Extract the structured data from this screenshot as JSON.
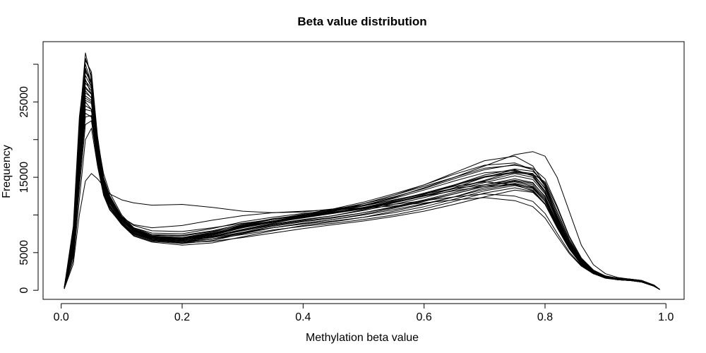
{
  "chart_data": {
    "type": "line",
    "title": "Beta value distribution",
    "xlabel": "Methylation beta value",
    "ylabel": "Frequency",
    "xlim": [
      -0.03,
      1.03
    ],
    "ylim": [
      -1200,
      33000
    ],
    "x_ticks": [
      0.0,
      0.2,
      0.4,
      0.6,
      0.8,
      1.0
    ],
    "x_tick_labels": [
      "0.0",
      "0.2",
      "0.4",
      "0.6",
      "0.8",
      "1.0"
    ],
    "y_ticks": [
      0,
      5000,
      15000,
      25000
    ],
    "y_minor_ticks": [
      10000,
      20000,
      30000
    ],
    "y_tick_labels": [
      "0",
      "5000",
      "15000",
      "25000"
    ],
    "grid": false,
    "legend": "none",
    "line_color": "#000000",
    "x": [
      0.005,
      0.02,
      0.03,
      0.04,
      0.05,
      0.06,
      0.07,
      0.08,
      0.1,
      0.12,
      0.15,
      0.2,
      0.25,
      0.3,
      0.35,
      0.4,
      0.45,
      0.5,
      0.55,
      0.6,
      0.65,
      0.7,
      0.75,
      0.78,
      0.8,
      0.82,
      0.84,
      0.86,
      0.88,
      0.9,
      0.92,
      0.94,
      0.96,
      0.98,
      0.99
    ],
    "series": [
      {
        "values": [
          400,
          8000,
          22000,
          31500,
          28000,
          20000,
          15500,
          13000,
          10000,
          8300,
          7400,
          7300,
          7900,
          8800,
          9500,
          10000,
          10500,
          11200,
          12000,
          12800,
          13500,
          14000,
          14600,
          14200,
          12500,
          9000,
          6000,
          3800,
          2500,
          1900,
          1600,
          1400,
          1200,
          600,
          100
        ]
      },
      {
        "values": [
          300,
          7000,
          20000,
          29500,
          27000,
          19000,
          14500,
          12200,
          9600,
          8000,
          7000,
          6800,
          7400,
          8500,
          9200,
          9800,
          10300,
          10900,
          11700,
          12600,
          13500,
          14500,
          15500,
          15000,
          13000,
          9500,
          6200,
          3900,
          2600,
          1900,
          1600,
          1500,
          1300,
          700,
          100
        ]
      },
      {
        "values": [
          350,
          6500,
          19000,
          28000,
          26000,
          18500,
          14000,
          11800,
          9300,
          7700,
          6800,
          6600,
          7300,
          8300,
          9100,
          9700,
          10200,
          10800,
          11600,
          12500,
          13600,
          15000,
          16000,
          15200,
          13000,
          9200,
          6000,
          3700,
          2400,
          1800,
          1500,
          1400,
          1200,
          600,
          100
        ]
      },
      {
        "values": [
          250,
          6000,
          17500,
          26500,
          25500,
          18000,
          13500,
          11500,
          9100,
          7600,
          6700,
          6500,
          7000,
          8000,
          8800,
          9400,
          9900,
          10600,
          11400,
          12300,
          13300,
          14300,
          15200,
          14700,
          12800,
          9300,
          6100,
          3800,
          2500,
          1800,
          1500,
          1400,
          1200,
          600,
          100
        ]
      },
      {
        "values": [
          300,
          5500,
          16000,
          25000,
          24000,
          17500,
          13200,
          11200,
          8900,
          7400,
          6600,
          6300,
          6800,
          7700,
          8500,
          9100,
          9600,
          10300,
          11100,
          12000,
          13000,
          14000,
          14800,
          14300,
          12400,
          9000,
          5900,
          3700,
          2400,
          1800,
          1500,
          1400,
          1200,
          600,
          100
        ]
      },
      {
        "values": [
          200,
          5000,
          15000,
          23500,
          23000,
          17000,
          13000,
          11000,
          8800,
          7300,
          6500,
          6200,
          6600,
          7500,
          8300,
          8900,
          9400,
          10100,
          10900,
          11800,
          12800,
          13800,
          14500,
          14000,
          12200,
          8900,
          5800,
          3600,
          2300,
          1700,
          1400,
          1300,
          1100,
          550,
          100
        ]
      },
      {
        "values": [
          300,
          4500,
          13500,
          22000,
          22500,
          16800,
          12800,
          10800,
          8700,
          7200,
          6400,
          6000,
          6300,
          7100,
          7900,
          8600,
          9100,
          9700,
          10500,
          11400,
          12400,
          13600,
          14200,
          13600,
          11800,
          8600,
          5600,
          3500,
          2300,
          1700,
          1400,
          1300,
          1100,
          550,
          100
        ]
      },
      {
        "values": [
          250,
          4000,
          12000,
          20000,
          21500,
          16500,
          12600,
          10700,
          8800,
          7500,
          6700,
          6300,
          6500,
          7000,
          7600,
          8200,
          8700,
          9200,
          9800,
          10500,
          11400,
          12400,
          13300,
          13000,
          11500,
          8500,
          5600,
          3500,
          2300,
          1700,
          1500,
          1400,
          1200,
          600,
          100
        ]
      },
      {
        "values": [
          200,
          3500,
          10000,
          14500,
          15500,
          14800,
          13800,
          12800,
          12000,
          11600,
          11300,
          11400,
          11000,
          10500,
          10300,
          10400,
          10800,
          11300,
          12000,
          12800,
          13800,
          14400,
          14000,
          13200,
          11500,
          8500,
          5700,
          3600,
          2400,
          1800,
          1500,
          1400,
          1200,
          600,
          100
        ]
      },
      {
        "values": [
          300,
          7500,
          21000,
          30500,
          29000,
          20500,
          15000,
          12600,
          9800,
          8200,
          7200,
          7000,
          7700,
          8700,
          9400,
          10000,
          10700,
          11500,
          12400,
          13500,
          14800,
          16000,
          16700,
          16000,
          13800,
          9800,
          6400,
          4000,
          2600,
          1900,
          1600,
          1500,
          1300,
          700,
          100
        ]
      },
      {
        "values": [
          350,
          8500,
          23000,
          30000,
          27500,
          19500,
          14800,
          12400,
          9700,
          8200,
          7300,
          7200,
          7800,
          8600,
          9200,
          9900,
          10600,
          11500,
          12600,
          14000,
          15600,
          17200,
          17800,
          16500,
          14000,
          9700,
          6200,
          3800,
          2500,
          1800,
          1500,
          1400,
          1200,
          600,
          100
        ]
      },
      {
        "values": [
          300,
          6800,
          19500,
          27500,
          26500,
          19000,
          14200,
          12000,
          9400,
          7900,
          7000,
          6900,
          7500,
          8500,
          9200,
          9900,
          10500,
          11300,
          12300,
          13600,
          15000,
          16500,
          18000,
          18400,
          17800,
          15000,
          10500,
          6000,
          3400,
          2200,
          1700,
          1500,
          1200,
          600,
          100
        ]
      },
      {
        "values": [
          300,
          6200,
          18000,
          27000,
          26000,
          18800,
          14000,
          11900,
          9400,
          8000,
          7200,
          7000,
          7600,
          8500,
          9200,
          9800,
          10300,
          10900,
          11700,
          12500,
          13500,
          14600,
          15800,
          15500,
          13500,
          9600,
          6200,
          3900,
          2500,
          1800,
          1500,
          1400,
          1200,
          600,
          100
        ]
      },
      {
        "values": [
          250,
          5800,
          17000,
          25500,
          25000,
          18200,
          13700,
          11600,
          9200,
          7800,
          7000,
          6700,
          7100,
          7900,
          8600,
          9200,
          9700,
          10300,
          11000,
          11900,
          12800,
          13800,
          14400,
          13800,
          12000,
          8800,
          5800,
          3600,
          2400,
          1700,
          1400,
          1300,
          1100,
          550,
          100
        ]
      },
      {
        "values": [
          300,
          5200,
          15500,
          24500,
          24000,
          17600,
          13300,
          11300,
          9000,
          7600,
          6900,
          6700,
          7000,
          7700,
          8300,
          8800,
          9200,
          9700,
          10300,
          11100,
          12100,
          13200,
          13900,
          13300,
          11500,
          8400,
          5600,
          3500,
          2300,
          1700,
          1400,
          1300,
          1100,
          550,
          100
        ]
      },
      {
        "values": [
          200,
          4800,
          14500,
          23000,
          23200,
          17200,
          13100,
          11100,
          8900,
          7500,
          6800,
          6500,
          6800,
          7400,
          8000,
          8500,
          8900,
          9400,
          10000,
          10800,
          11800,
          12900,
          13600,
          13100,
          11400,
          8300,
          5500,
          3400,
          2200,
          1600,
          1400,
          1300,
          1100,
          550,
          100
        ]
      },
      {
        "values": [
          300,
          7200,
          20500,
          29000,
          27500,
          19500,
          14500,
          12200,
          9600,
          8100,
          7100,
          6800,
          7200,
          8100,
          8900,
          9700,
          10500,
          11500,
          12600,
          13800,
          15000,
          16200,
          16600,
          16200,
          14800,
          11200,
          7200,
          4300,
          2700,
          1900,
          1600,
          1500,
          1300,
          700,
          100
        ]
      },
      {
        "values": [
          300,
          6600,
          19000,
          28500,
          27000,
          19200,
          14300,
          12100,
          9500,
          8000,
          7100,
          6900,
          7400,
          8300,
          9000,
          9600,
          10200,
          10900,
          11800,
          12800,
          13900,
          15000,
          15600,
          15400,
          14400,
          11000,
          7100,
          4200,
          2600,
          1900,
          1600,
          1400,
          1200,
          600,
          100
        ]
      },
      {
        "values": [
          250,
          5600,
          16500,
          25800,
          25200,
          18500,
          14000,
          12000,
          9800,
          8600,
          7900,
          7800,
          8300,
          8900,
          9400,
          9900,
          10400,
          11000,
          11700,
          12500,
          13200,
          13800,
          14000,
          13500,
          11800,
          8600,
          5700,
          3600,
          2400,
          1800,
          1500,
          1400,
          1200,
          600,
          100
        ]
      },
      {
        "values": [
          300,
          6400,
          18500,
          27800,
          26800,
          19000,
          14200,
          12100,
          9600,
          8300,
          7600,
          7500,
          8200,
          9100,
          9700,
          10200,
          10600,
          11000,
          11400,
          11900,
          12400,
          12800,
          12500,
          11800,
          10200,
          7600,
          5100,
          3300,
          2200,
          1700,
          1500,
          1400,
          1200,
          600,
          100
        ]
      },
      {
        "values": [
          250,
          5400,
          16000,
          25200,
          24800,
          18300,
          13900,
          11900,
          9700,
          8700,
          8300,
          8600,
          9300,
          9900,
          10300,
          10500,
          10700,
          10900,
          11200,
          11600,
          12000,
          12300,
          11900,
          11100,
          9600,
          7200,
          4900,
          3200,
          2200,
          1700,
          1500,
          1400,
          1200,
          600,
          100
        ]
      },
      {
        "values": [
          300,
          7800,
          22000,
          30800,
          28500,
          20000,
          14900,
          12400,
          9700,
          8100,
          7100,
          6900,
          7500,
          8600,
          9400,
          10100,
          10800,
          11700,
          12800,
          14000,
          15400,
          16600,
          16900,
          16000,
          14000,
          10200,
          6600,
          4000,
          2500,
          1800,
          1500,
          1400,
          1200,
          600,
          100
        ]
      },
      {
        "values": [
          300,
          6900,
          20000,
          29200,
          27800,
          19700,
          14600,
          12300,
          9600,
          8000,
          7000,
          6800,
          7300,
          8400,
          9200,
          9900,
          10500,
          11300,
          12200,
          13300,
          14500,
          15600,
          15900,
          15200,
          13200,
          9400,
          6100,
          3800,
          2500,
          1800,
          1500,
          1400,
          1200,
          600,
          100
        ]
      },
      {
        "values": [
          250,
          6100,
          17800,
          26800,
          26000,
          18700,
          14000,
          11800,
          9300,
          7800,
          6900,
          6600,
          7100,
          8000,
          8700,
          9300,
          9900,
          10700,
          11600,
          12700,
          14000,
          15300,
          16100,
          15800,
          14200,
          10500,
          6800,
          4100,
          2600,
          1900,
          1600,
          1400,
          1200,
          600,
          100
        ]
      },
      {
        "values": [
          300,
          5900,
          17200,
          26200,
          25600,
          18500,
          13900,
          11700,
          9300,
          7900,
          7100,
          6900,
          7500,
          8400,
          9100,
          9700,
          10300,
          11000,
          11900,
          12900,
          14000,
          15100,
          15700,
          15300,
          13600,
          9900,
          6400,
          3900,
          2500,
          1800,
          1500,
          1400,
          1200,
          600,
          100
        ]
      },
      {
        "values": [
          200,
          5100,
          15200,
          24000,
          23800,
          17400,
          13200,
          11200,
          8900,
          7500,
          6700,
          6400,
          6800,
          7600,
          8300,
          8900,
          9400,
          10000,
          10700,
          11500,
          12400,
          13400,
          14100,
          13700,
          12000,
          8800,
          5800,
          3600,
          2400,
          1700,
          1400,
          1300,
          1100,
          550,
          100
        ]
      }
    ]
  }
}
